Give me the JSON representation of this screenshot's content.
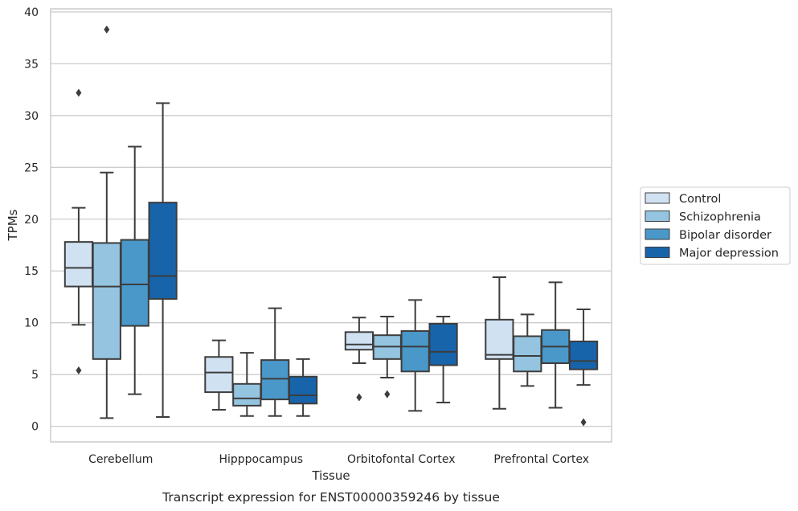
{
  "caption": "Transcript expression for ENST00000359246 by tissue",
  "chart_data": {
    "type": "box",
    "xlabel": "Tissue",
    "ylabel": "TPMs",
    "ylim": [
      -1.5,
      40.3
    ],
    "yticks": [
      0,
      5,
      10,
      15,
      20,
      25,
      30,
      35,
      40
    ],
    "grid": true,
    "legend_position": "right",
    "categories": [
      "Cerebellum",
      "Hipppocampus",
      "Orbitofontal Cortex",
      "Prefrontal Cortex"
    ],
    "series": [
      {
        "name": "Control",
        "color": "#d0e1f2",
        "boxes": [
          {
            "whisker_low": 9.8,
            "q1": 13.5,
            "median": 15.3,
            "q3": 17.8,
            "whisker_high": 21.1,
            "outliers": [
              5.4,
              32.2
            ]
          },
          {
            "whisker_low": 1.6,
            "q1": 3.3,
            "median": 5.2,
            "q3": 6.7,
            "whisker_high": 8.3,
            "outliers": []
          },
          {
            "whisker_low": 6.1,
            "q1": 7.4,
            "median": 7.9,
            "q3": 9.1,
            "whisker_high": 10.5,
            "outliers": [
              2.8
            ]
          },
          {
            "whisker_low": 1.7,
            "q1": 6.5,
            "median": 6.9,
            "q3": 10.3,
            "whisker_high": 14.4,
            "outliers": []
          }
        ]
      },
      {
        "name": "Schizophrenia",
        "color": "#94c4df",
        "boxes": [
          {
            "whisker_low": 0.8,
            "q1": 6.5,
            "median": 13.5,
            "q3": 17.7,
            "whisker_high": 24.5,
            "outliers": [
              38.3
            ]
          },
          {
            "whisker_low": 1.0,
            "q1": 2.0,
            "median": 2.7,
            "q3": 4.1,
            "whisker_high": 7.1,
            "outliers": []
          },
          {
            "whisker_low": 4.7,
            "q1": 6.5,
            "median": 7.7,
            "q3": 8.8,
            "whisker_high": 10.6,
            "outliers": [
              3.1
            ]
          },
          {
            "whisker_low": 3.9,
            "q1": 5.3,
            "median": 6.8,
            "q3": 8.7,
            "whisker_high": 10.8,
            "outliers": []
          }
        ]
      },
      {
        "name": "Bipolar disorder",
        "color": "#4a98c9",
        "boxes": [
          {
            "whisker_low": 3.1,
            "q1": 9.7,
            "median": 13.7,
            "q3": 18.0,
            "whisker_high": 27.0,
            "outliers": []
          },
          {
            "whisker_low": 1.0,
            "q1": 2.6,
            "median": 4.6,
            "q3": 6.4,
            "whisker_high": 11.4,
            "outliers": []
          },
          {
            "whisker_low": 1.5,
            "q1": 5.3,
            "median": 7.7,
            "q3": 9.2,
            "whisker_high": 12.2,
            "outliers": []
          },
          {
            "whisker_low": 1.8,
            "q1": 6.1,
            "median": 7.7,
            "q3": 9.3,
            "whisker_high": 13.9,
            "outliers": []
          }
        ]
      },
      {
        "name": "Major depression",
        "color": "#1764ab",
        "boxes": [
          {
            "whisker_low": 0.9,
            "q1": 12.3,
            "median": 14.5,
            "q3": 21.6,
            "whisker_high": 31.2,
            "outliers": []
          },
          {
            "whisker_low": 1.0,
            "q1": 2.2,
            "median": 3.0,
            "q3": 4.8,
            "whisker_high": 6.5,
            "outliers": []
          },
          {
            "whisker_low": 2.3,
            "q1": 5.9,
            "median": 7.2,
            "q3": 9.9,
            "whisker_high": 10.6,
            "outliers": []
          },
          {
            "whisker_low": 4.0,
            "q1": 5.5,
            "median": 6.3,
            "q3": 8.2,
            "whisker_high": 11.3,
            "outliers": [
              0.4
            ]
          }
        ]
      }
    ]
  }
}
